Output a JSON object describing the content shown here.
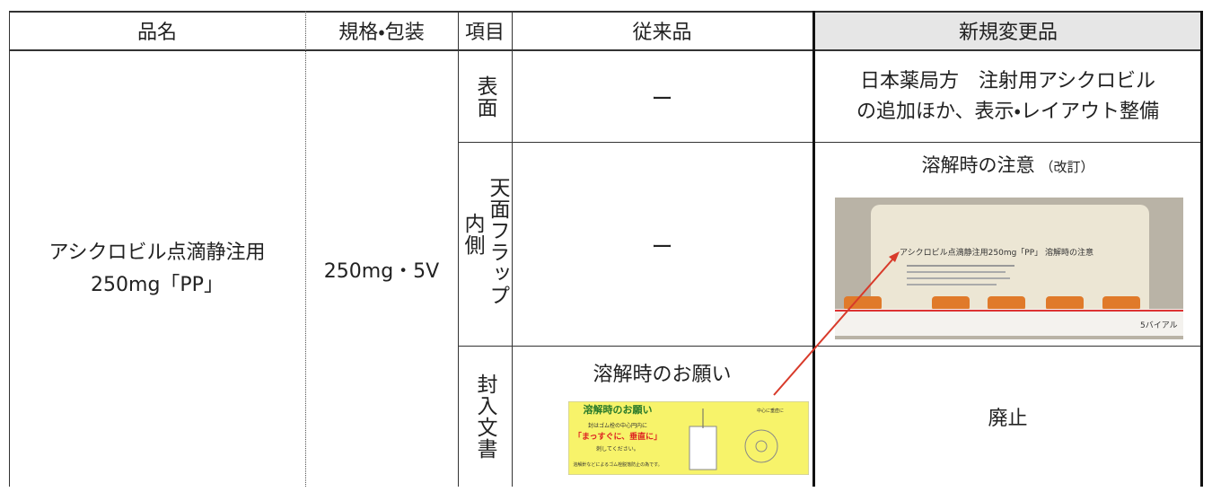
{
  "table": {
    "header": [
      "品名",
      "規格・包装",
      "項目",
      "従来品",
      "新規変更品"
    ],
    "product": {
      "name": [
        "アシクロビル点滴静注用",
        "250mg「PP」"
      ],
      "spec": "250mg・5V"
    },
    "rows": [
      {
        "item": [
          "表面"
        ],
        "conventional": "ー",
        "new": [
          "日本薬局方　注射用アシクロビル",
          "の追加ほか、表示・レイアウト整備"
        ]
      },
      {
        "item": [
          "天面フラップ",
          "内側"
        ],
        "conventional": "ー",
        "new_title": "溶解時の注意",
        "new_note": "（改訂）",
        "photo": {
          "label": "アシクロビル点滴静注用250mg「PP」 溶解時の注意",
          "count": "5バイアル"
        }
      },
      {
        "item": [
          "封入文書"
        ],
        "conventional": "溶解時のお願い",
        "insert": {
          "title": "溶解時のお願い",
          "lines": [
            "封はゴム栓の中心円内に",
            "「まっすぐに、垂直に」",
            "刺してください。",
            "溶解針などによるゴム栓脱落防止の為です。"
          ],
          "figure_note": "中心に垂直に"
        },
        "new": "廃止"
      }
    ]
  }
}
